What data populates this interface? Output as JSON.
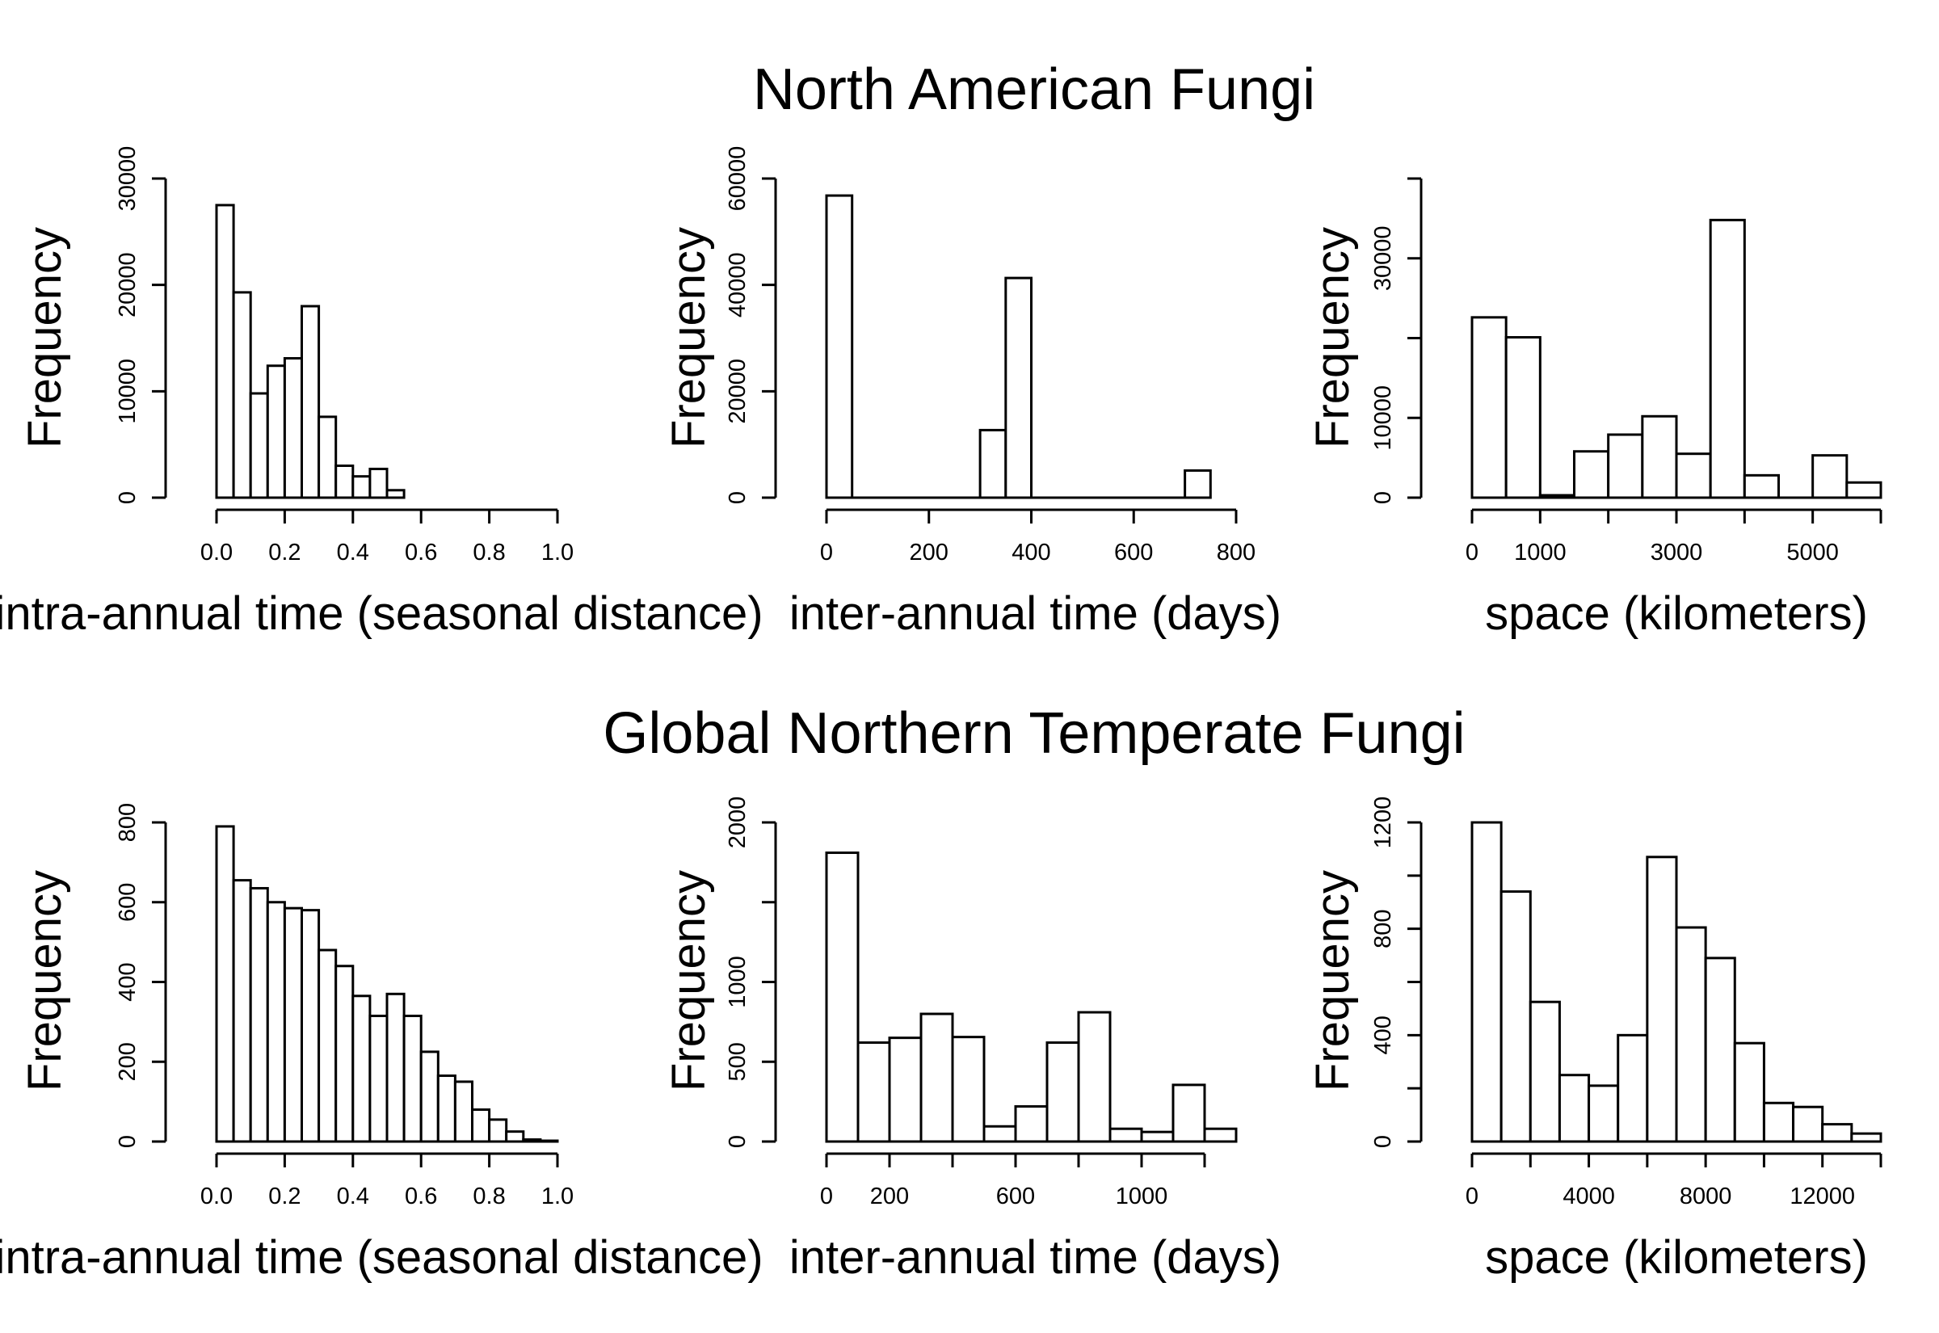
{
  "titles": [
    "North American Fungi",
    "Global Northern Temperate Fungi"
  ],
  "chart_data": [
    {
      "type": "bar",
      "title": "North American Fungi",
      "xlabel": "intra-annual time (seasonal distance)",
      "ylabel": "Frequency",
      "bin_edges": [
        0.0,
        0.05,
        0.1,
        0.15,
        0.2,
        0.25,
        0.3,
        0.35,
        0.4,
        0.45,
        0.5,
        0.55
      ],
      "values": [
        27500,
        19300,
        9800,
        12400,
        13100,
        18000,
        7600,
        3000,
        2000,
        2700,
        700
      ],
      "xlim": [
        0,
        1.0
      ],
      "ylim": [
        0,
        30000
      ],
      "xticks": [
        0.0,
        0.2,
        0.4,
        0.6,
        0.8,
        1.0
      ],
      "xtick_labels": [
        "0.0",
        "0.2",
        "0.4",
        "0.6",
        "0.8",
        "1.0"
      ],
      "yticks": [
        0,
        10000,
        20000,
        30000
      ],
      "ytick_labels": [
        "0",
        "10000",
        "20000",
        "30000"
      ],
      "grid": false
    },
    {
      "type": "bar",
      "title": "North American Fungi",
      "xlabel": "inter-annual time (days)",
      "ylabel": "Frequency",
      "bin_edges": [
        0,
        50,
        100,
        150,
        200,
        250,
        300,
        350,
        400,
        450,
        500,
        550,
        600,
        650,
        700,
        750
      ],
      "values": [
        56800,
        0,
        0,
        0,
        0,
        0,
        12700,
        41300,
        0,
        0,
        0,
        0,
        0,
        0,
        5100
      ],
      "xlim": [
        0,
        800
      ],
      "ylim": [
        0,
        60000
      ],
      "xticks": [
        0,
        200,
        400,
        600,
        800
      ],
      "xtick_labels": [
        "0",
        "200",
        "400",
        "600",
        "800"
      ],
      "yticks": [
        0,
        20000,
        40000,
        60000
      ],
      "ytick_labels": [
        "0",
        "20000",
        "40000",
        "60000"
      ],
      "grid": false
    },
    {
      "type": "bar",
      "title": "North American Fungi",
      "xlabel": "space (kilometers)",
      "ylabel": "Frequency",
      "bin_edges": [
        0,
        500,
        1000,
        1500,
        2000,
        2500,
        3000,
        3500,
        4000,
        4500,
        5000,
        5500,
        6000
      ],
      "values": [
        22600,
        20100,
        300,
        5800,
        7900,
        10200,
        5500,
        34800,
        2800,
        0,
        5300,
        1900
      ],
      "xlim": [
        0,
        6000
      ],
      "ylim": [
        0,
        40000
      ],
      "xticks": [
        0,
        1000,
        2000,
        3000,
        4000,
        5000,
        6000
      ],
      "xtick_labels": [
        "0",
        "1000",
        "",
        "3000",
        "",
        "5000",
        ""
      ],
      "yticks": [
        0,
        10000,
        20000,
        30000,
        40000
      ],
      "ytick_labels": [
        "0",
        "10000",
        "",
        "30000",
        ""
      ],
      "grid": false
    },
    {
      "type": "bar",
      "title": "Global Northern Temperate Fungi",
      "xlabel": "intra-annual time (seasonal distance)",
      "ylabel": "Frequency",
      "bin_edges": [
        0.0,
        0.05,
        0.1,
        0.15,
        0.2,
        0.25,
        0.3,
        0.35,
        0.4,
        0.45,
        0.5,
        0.55,
        0.6,
        0.65,
        0.7,
        0.75,
        0.8,
        0.85,
        0.9,
        0.95,
        1.0
      ],
      "values": [
        790,
        655,
        635,
        600,
        585,
        580,
        480,
        440,
        365,
        315,
        370,
        315,
        225,
        165,
        150,
        80,
        55,
        25,
        5,
        2
      ],
      "xlim": [
        0,
        1.0
      ],
      "ylim": [
        0,
        800
      ],
      "xticks": [
        0.0,
        0.2,
        0.4,
        0.6,
        0.8,
        1.0
      ],
      "xtick_labels": [
        "0.0",
        "0.2",
        "0.4",
        "0.6",
        "0.8",
        "1.0"
      ],
      "yticks": [
        0,
        200,
        400,
        600,
        800
      ],
      "ytick_labels": [
        "0",
        "200",
        "400",
        "600",
        "800"
      ],
      "grid": false
    },
    {
      "type": "bar",
      "title": "Global Northern Temperate Fungi",
      "xlabel": "inter-annual time (days)",
      "ylabel": "Frequency",
      "bin_edges": [
        0,
        100,
        200,
        300,
        400,
        500,
        600,
        700,
        800,
        900,
        1000,
        1100,
        1200,
        1300
      ],
      "values": [
        1810,
        620,
        650,
        800,
        655,
        95,
        220,
        620,
        810,
        80,
        60,
        355,
        80
      ],
      "xlim": [
        0,
        1300
      ],
      "ylim": [
        0,
        2000
      ],
      "xticks": [
        0,
        200,
        400,
        600,
        800,
        1000,
        1200
      ],
      "xtick_labels": [
        "0",
        "200",
        "",
        "600",
        "",
        "1000",
        ""
      ],
      "yticks": [
        0,
        500,
        1000,
        1500,
        2000
      ],
      "ytick_labels": [
        "0",
        "500",
        "1000",
        "",
        "2000"
      ],
      "grid": false
    },
    {
      "type": "bar",
      "title": "Global Northern Temperate Fungi",
      "xlabel": "space (kilometers)",
      "ylabel": "Frequency",
      "bin_edges": [
        0,
        1000,
        2000,
        3000,
        4000,
        5000,
        6000,
        7000,
        8000,
        9000,
        10000,
        11000,
        12000,
        13000,
        14000
      ],
      "values": [
        1200,
        940,
        525,
        250,
        210,
        400,
        1070,
        805,
        690,
        370,
        145,
        130,
        65,
        30
      ],
      "xlim": [
        0,
        14000
      ],
      "ylim": [
        0,
        1200
      ],
      "xticks": [
        0,
        2000,
        4000,
        6000,
        8000,
        10000,
        12000,
        14000
      ],
      "xtick_labels": [
        "0",
        "",
        "4000",
        "",
        "8000",
        "",
        "12000",
        ""
      ],
      "yticks": [
        0,
        200,
        400,
        600,
        800,
        1000,
        1200
      ],
      "ytick_labels": [
        "0",
        "",
        "400",
        "",
        "800",
        "",
        "1200"
      ],
      "grid": false
    }
  ]
}
